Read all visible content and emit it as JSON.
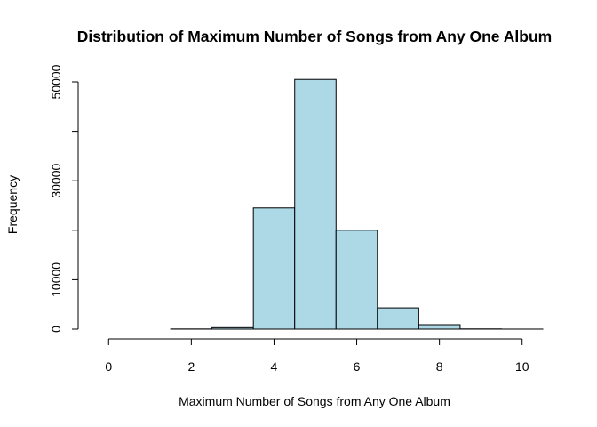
{
  "chart_data": {
    "type": "bar",
    "title": "Distribution of Maximum Number of Songs from Any One Album",
    "xlabel": "Maximum Number of Songs from Any One Album",
    "ylabel": "Frequency",
    "bar_color": "#add8e6",
    "xlim": [
      -0.5,
      10.5
    ],
    "ylim": [
      0,
      50000
    ],
    "x_ticks": [
      "0",
      "2",
      "4",
      "6",
      "8",
      "10"
    ],
    "y_ticks": [
      "0",
      "10000",
      "30000",
      "50000"
    ],
    "bins": [
      {
        "from": 0.5,
        "to": 1.5,
        "count": 0
      },
      {
        "from": 1.5,
        "to": 2.5,
        "count": 30
      },
      {
        "from": 2.5,
        "to": 3.5,
        "count": 300
      },
      {
        "from": 3.5,
        "to": 4.5,
        "count": 24500
      },
      {
        "from": 4.5,
        "to": 5.5,
        "count": 50500
      },
      {
        "from": 5.5,
        "to": 6.5,
        "count": 20000
      },
      {
        "from": 6.5,
        "to": 7.5,
        "count": 4300
      },
      {
        "from": 7.5,
        "to": 8.5,
        "count": 900
      },
      {
        "from": 8.5,
        "to": 9.5,
        "count": 40
      },
      {
        "from": 9.5,
        "to": 10.5,
        "count": 5
      }
    ],
    "grid": false,
    "legend": "none"
  }
}
